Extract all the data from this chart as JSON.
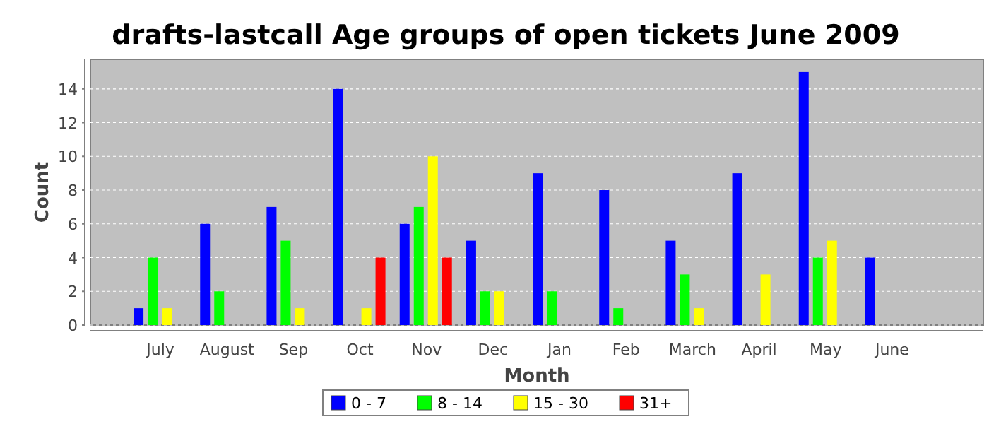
{
  "chart_data": {
    "type": "bar",
    "title": "drafts-lastcall Age groups of open tickets June 2009",
    "xlabel": "Month",
    "ylabel": "Count",
    "categories": [
      "July",
      "August",
      "Sep",
      "Oct",
      "Nov",
      "Dec",
      "Jan",
      "Feb",
      "March",
      "April",
      "May",
      "June"
    ],
    "series": [
      {
        "name": "0 - 7",
        "color": "#0000ff",
        "values": [
          1,
          6,
          7,
          14,
          6,
          5,
          9,
          8,
          5,
          9,
          15,
          4
        ]
      },
      {
        "name": "8 - 14",
        "color": "#00ff00",
        "values": [
          4,
          2,
          5,
          0,
          7,
          2,
          2,
          1,
          3,
          0,
          4,
          0
        ]
      },
      {
        "name": "15 - 30",
        "color": "#ffff00",
        "values": [
          1,
          0,
          1,
          1,
          10,
          2,
          0,
          0,
          1,
          3,
          5,
          0
        ]
      },
      {
        "name": "31+",
        "color": "#ff0000",
        "values": [
          0,
          0,
          0,
          4,
          4,
          0,
          0,
          0,
          0,
          0,
          0,
          0
        ]
      }
    ],
    "ylim": [
      0,
      15.75
    ],
    "yticks": [
      0,
      2,
      4,
      6,
      8,
      10,
      12,
      14
    ],
    "grid": "y",
    "legend": "bottom"
  }
}
